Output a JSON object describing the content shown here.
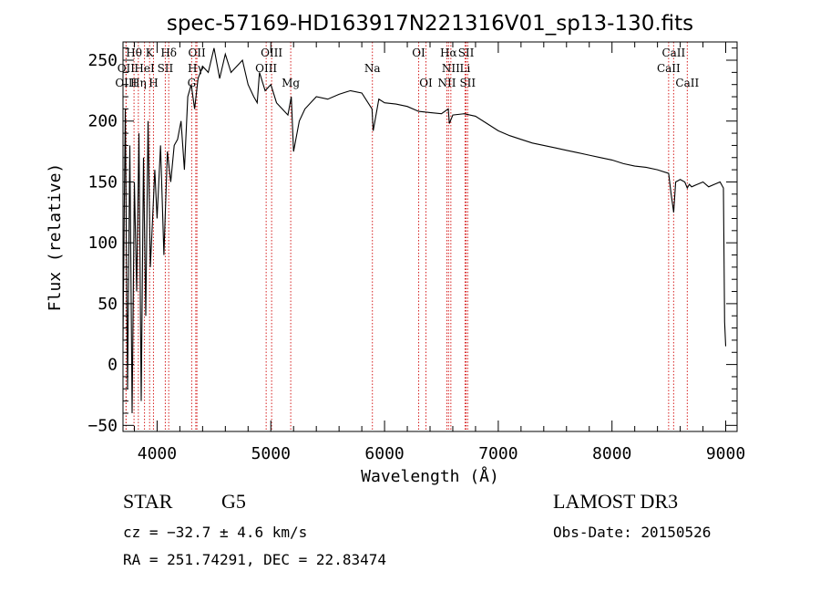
{
  "chart_data": {
    "type": "line",
    "title": "spec-57169-HD163917N221316V01_sp13-130.fits",
    "xlabel": "Wavelength (Å)",
    "ylabel": "Flux (relative)",
    "xlim": [
      3700,
      9100
    ],
    "ylim": [
      -55,
      265
    ],
    "xticks": [
      4000,
      5000,
      6000,
      7000,
      8000,
      9000
    ],
    "yticks": [
      -50,
      0,
      50,
      100,
      150,
      200,
      250
    ],
    "series": [
      {
        "name": "flux",
        "x": [
          3700,
          3720,
          3740,
          3760,
          3780,
          3800,
          3820,
          3840,
          3860,
          3880,
          3900,
          3920,
          3940,
          3960,
          3980,
          4000,
          4030,
          4060,
          4090,
          4120,
          4150,
          4180,
          4210,
          4240,
          4270,
          4300,
          4330,
          4360,
          4400,
          4450,
          4500,
          4550,
          4600,
          4650,
          4700,
          4750,
          4800,
          4850,
          4880,
          4900,
          4950,
          5000,
          5050,
          5100,
          5150,
          5180,
          5200,
          5250,
          5300,
          5400,
          5500,
          5600,
          5700,
          5800,
          5890,
          5900,
          5950,
          6000,
          6100,
          6200,
          6300,
          6400,
          6500,
          6560,
          6570,
          6600,
          6700,
          6800,
          6900,
          7000,
          7100,
          7200,
          7300,
          7400,
          7500,
          7600,
          7700,
          7800,
          7900,
          8000,
          8100,
          8200,
          8300,
          8400,
          8498,
          8520,
          8542,
          8560,
          8600,
          8640,
          8662,
          8680,
          8700,
          8750,
          8800,
          8850,
          8900,
          8950,
          8980,
          8990,
          9000
        ],
        "values": [
          20,
          210,
          -20,
          180,
          -40,
          150,
          60,
          190,
          -30,
          170,
          40,
          200,
          80,
          120,
          160,
          120,
          180,
          90,
          175,
          150,
          180,
          185,
          200,
          160,
          220,
          230,
          210,
          235,
          245,
          240,
          260,
          235,
          255,
          240,
          245,
          250,
          230,
          220,
          215,
          240,
          225,
          230,
          215,
          210,
          205,
          220,
          175,
          200,
          210,
          220,
          218,
          222,
          225,
          223,
          210,
          192,
          218,
          215,
          214,
          212,
          208,
          207,
          206,
          210,
          198,
          205,
          206,
          204,
          198,
          192,
          188,
          185,
          182,
          180,
          178,
          176,
          174,
          172,
          170,
          168,
          165,
          163,
          162,
          160,
          157,
          140,
          125,
          150,
          152,
          150,
          145,
          148,
          146,
          148,
          150,
          146,
          148,
          150,
          145,
          35,
          15
        ]
      }
    ],
    "spectral_lines": [
      {
        "label": "Hθ",
        "x": 3797,
        "row": 0
      },
      {
        "label": "K",
        "x": 3934,
        "row": 0
      },
      {
        "label": "Hδ",
        "x": 4102,
        "row": 0
      },
      {
        "label": "OII",
        "x": 4350,
        "row": 0
      },
      {
        "label": "OIII",
        "x": 5007,
        "row": 0
      },
      {
        "label": "OI",
        "x": 6300,
        "row": 0
      },
      {
        "label": "Hα",
        "x": 6563,
        "row": 0
      },
      {
        "label": "SII",
        "x": 6717,
        "row": 0
      },
      {
        "label": "CaII",
        "x": 8542,
        "row": 0
      },
      {
        "label": "OII",
        "x": 3727,
        "row": 1
      },
      {
        "label": "HeI",
        "x": 3889,
        "row": 1
      },
      {
        "label": "SII",
        "x": 4072,
        "row": 1
      },
      {
        "label": "Hγ",
        "x": 4340,
        "row": 1
      },
      {
        "label": "OIII",
        "x": 4959,
        "row": 1
      },
      {
        "label": "Na",
        "x": 5893,
        "row": 1
      },
      {
        "label": "NII",
        "x": 6583,
        "row": 1
      },
      {
        "label": "Li",
        "x": 6708,
        "row": 1
      },
      {
        "label": "CaII",
        "x": 8498,
        "row": 1
      },
      {
        "label": "OIII",
        "x": 3727,
        "row": 2
      },
      {
        "label": "Hη",
        "x": 3835,
        "row": 2
      },
      {
        "label": "H",
        "x": 3968,
        "row": 2
      },
      {
        "label": "G",
        "x": 4304,
        "row": 2
      },
      {
        "label": "Mg",
        "x": 5175,
        "row": 2
      },
      {
        "label": "OI",
        "x": 6364,
        "row": 2
      },
      {
        "label": "NII",
        "x": 6548,
        "row": 2
      },
      {
        "label": "SII",
        "x": 6731,
        "row": 2
      },
      {
        "label": "CaII",
        "x": 8662,
        "row": 2
      }
    ],
    "line_marker_color": "#d62020",
    "grid": false
  },
  "info": {
    "object_class": "STAR",
    "subclass": "G5",
    "survey": "LAMOST DR3",
    "redshift": "cz = −32.7 ± 4.6 km/s",
    "obs_date": "Obs-Date: 20150526",
    "coords": "RA = 251.74291, DEC =  22.83474"
  }
}
